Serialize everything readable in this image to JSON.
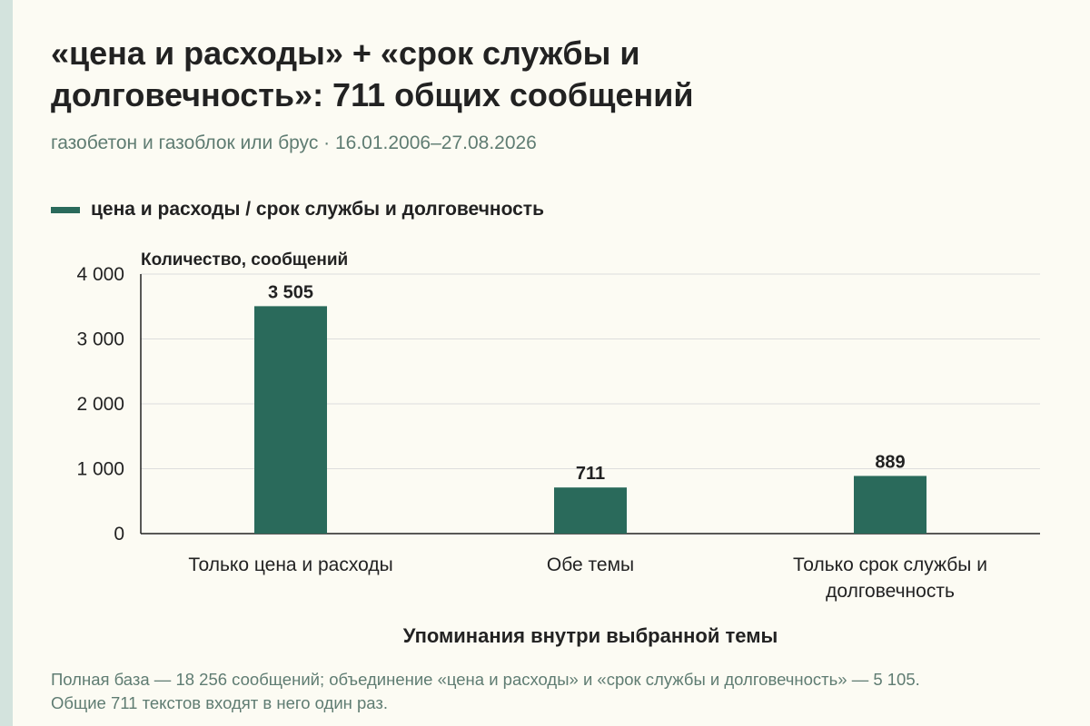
{
  "title_lines": [
    "«цена и расходы» + «срок службы и",
    "долговечность»: 711 общих сообщений"
  ],
  "subtitle": "газобетон и газоблок или брус · 16.01.2006–27.08.2026",
  "legend": {
    "label": "цена и расходы / срок службы и долговечность"
  },
  "colors": {
    "bar": "#2a6a5b",
    "background": "#fcfbf3",
    "accent_strip": "#d3e3dd",
    "muted_text": "#5f7c72",
    "grid": "#dddddd"
  },
  "chart_data": {
    "type": "bar",
    "categories": [
      [
        "Только цена и расходы"
      ],
      [
        "Обе темы"
      ],
      [
        "Только срок службы и",
        "долговечность"
      ]
    ],
    "values": [
      3505,
      711,
      889
    ],
    "value_labels": [
      "3 505",
      "711",
      "889"
    ],
    "ylabel": "Количество, сообщений",
    "xlabel": "Упоминания внутри выбранной темы",
    "ylim": [
      0,
      4000
    ],
    "yticks": [
      0,
      1000,
      2000,
      3000,
      4000
    ],
    "ytick_labels": [
      "0",
      "1 000",
      "2 000",
      "3 000",
      "4 000"
    ],
    "grid": true
  },
  "footnote": "Полная база — 18 256 сообщений; объединение «цена и расходы» и «срок службы и долговечность» — 5 105. Общие 711 текстов входят в него один раз."
}
